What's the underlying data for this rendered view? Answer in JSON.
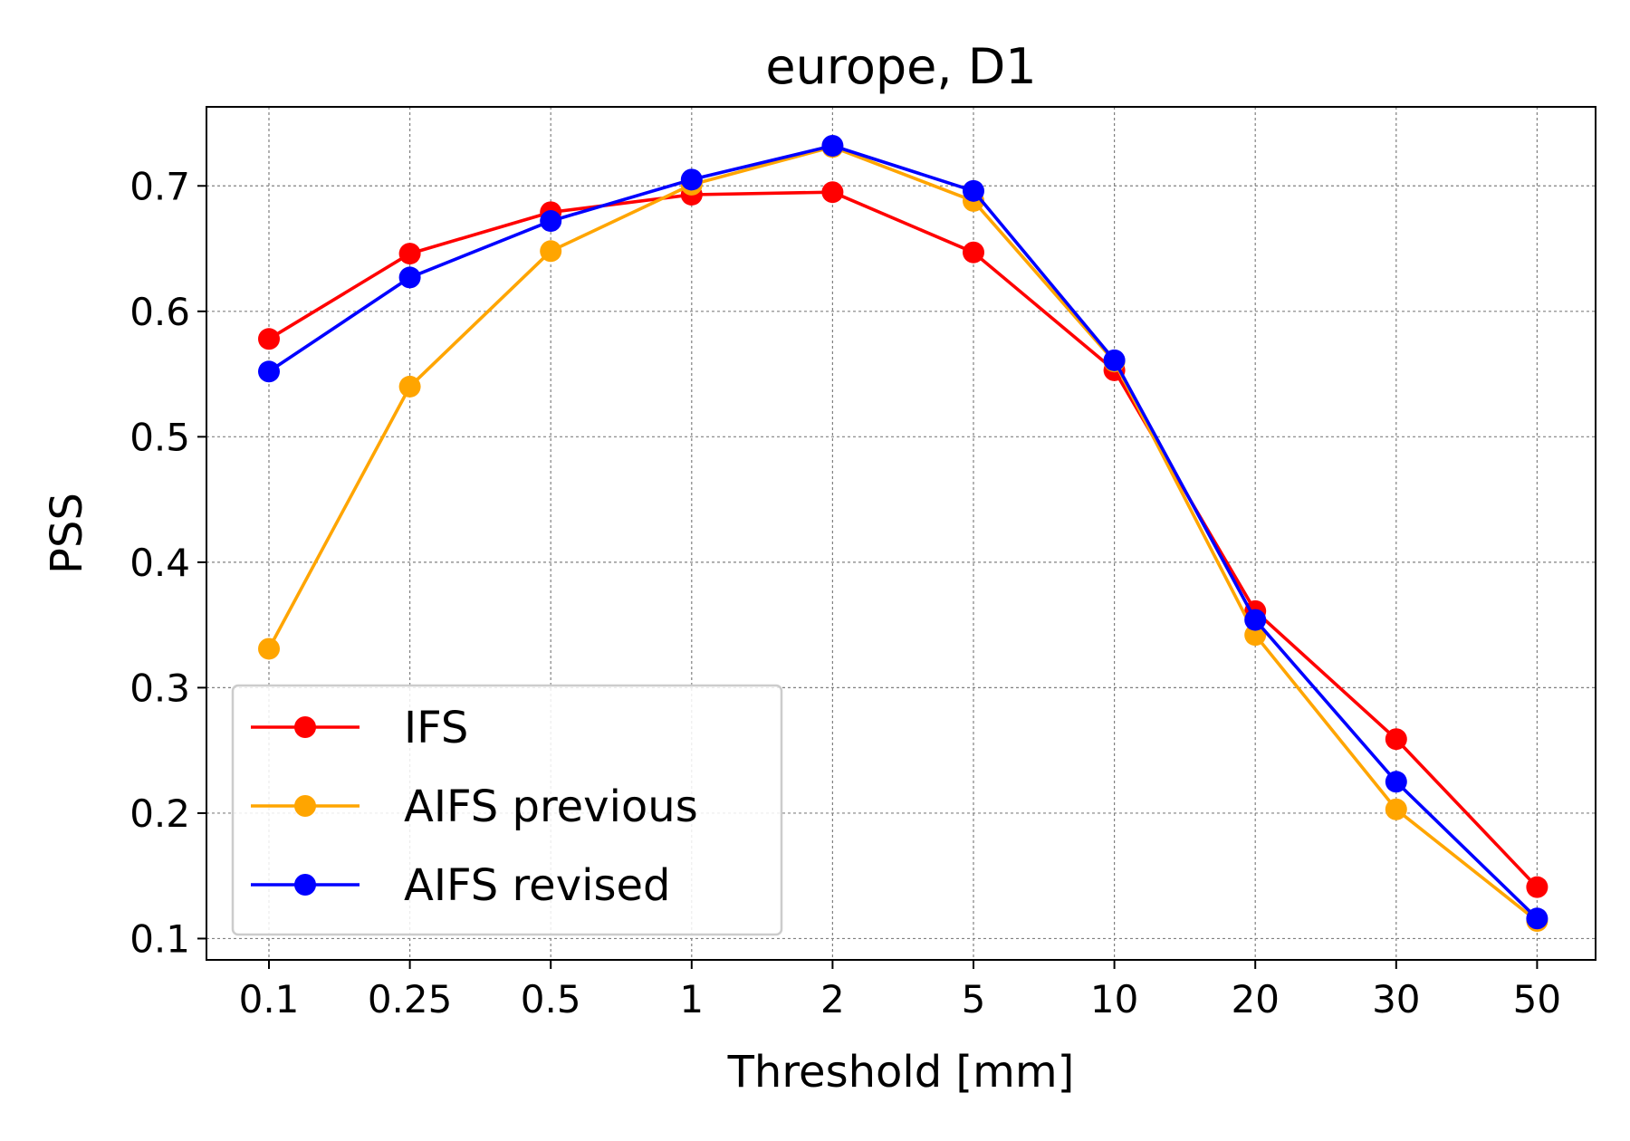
{
  "chart_data": {
    "type": "line",
    "title": "europe, D1",
    "xlabel": "Threshold [mm]",
    "ylabel": "PSS",
    "categories": [
      "0.1",
      "0.25",
      "0.5",
      "1",
      "2",
      "5",
      "10",
      "20",
      "30",
      "50"
    ],
    "ylim": [
      0.083,
      0.763
    ],
    "yticks": [
      "0.1",
      "0.2",
      "0.3",
      "0.4",
      "0.5",
      "0.6",
      "0.7"
    ],
    "grid": true,
    "legend_position": "lower-left",
    "series": [
      {
        "name": "IFS",
        "color": "#ff0000",
        "values": [
          0.578,
          0.646,
          0.679,
          0.693,
          0.695,
          0.647,
          0.553,
          0.361,
          0.259,
          0.141
        ]
      },
      {
        "name": "AIFS previous",
        "color": "#ffa500",
        "values": [
          0.331,
          0.54,
          0.648,
          0.701,
          0.731,
          0.688,
          0.56,
          0.342,
          0.203,
          0.114
        ]
      },
      {
        "name": "AIFS revised",
        "color": "#0000ff",
        "values": [
          0.552,
          0.627,
          0.672,
          0.705,
          0.732,
          0.696,
          0.561,
          0.354,
          0.225,
          0.116
        ]
      }
    ]
  }
}
